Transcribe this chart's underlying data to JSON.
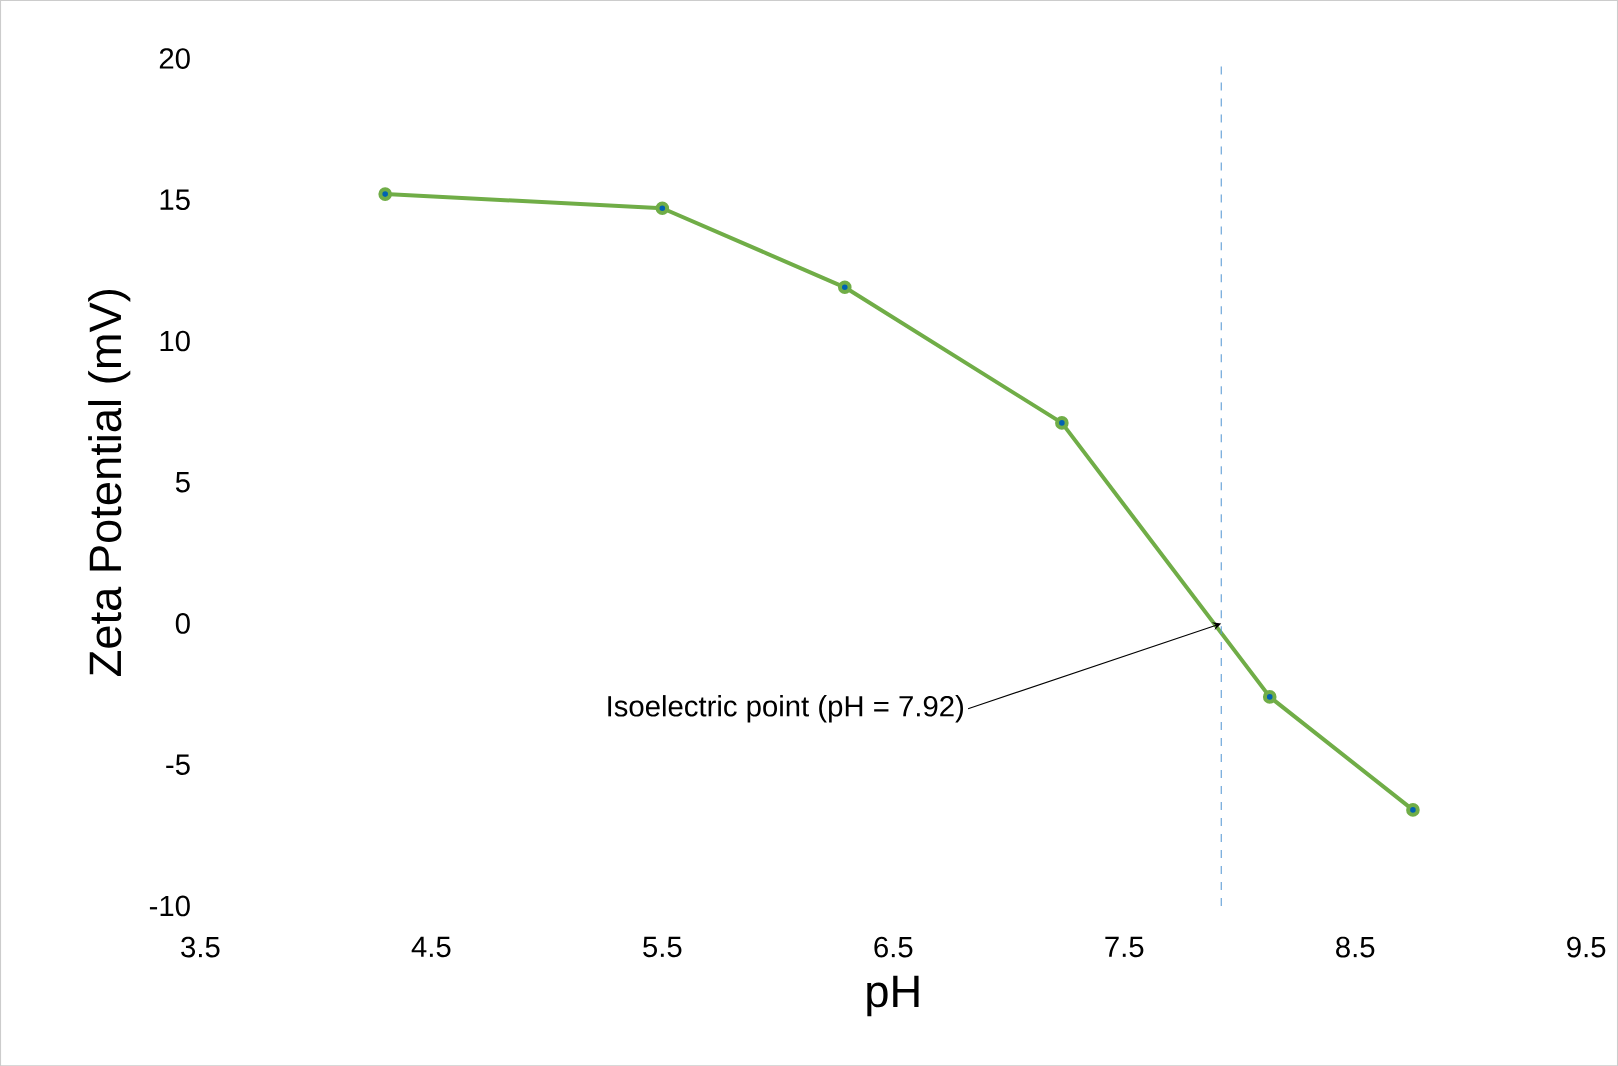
{
  "chart_data": {
    "type": "line",
    "xlabel": "pH",
    "ylabel": "Zeta Potential (mV)",
    "x": [
      4.3,
      5.5,
      6.29,
      7.23,
      8.13,
      8.75
    ],
    "series": [
      {
        "color": "#70ad47",
        "values": [
          15.2,
          14.7,
          11.9,
          7.1,
          -2.6,
          -6.6
        ]
      }
    ],
    "marker": "circle",
    "grid": false,
    "xlim": [
      3.5,
      9.5
    ],
    "xticks": [
      3.5,
      4.5,
      5.5,
      6.5,
      7.5,
      8.5,
      9.5
    ],
    "ylim": [
      -10,
      20
    ],
    "yticks": [
      -10,
      -5,
      0,
      5,
      10,
      15,
      20
    ],
    "ref_lines": [
      {
        "axis": "x",
        "value": 7.92,
        "color": "#5b9bd5",
        "line_style": "dashed"
      }
    ],
    "annotations": [
      {
        "text": "Isoelectric point (pH = 7.92)",
        "x": 7.92,
        "y": 0
      }
    ]
  }
}
